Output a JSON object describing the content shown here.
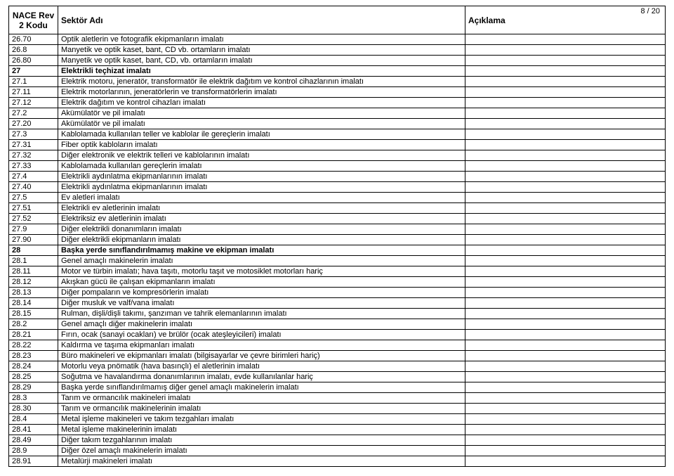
{
  "page": {
    "page_label": "8 / 20"
  },
  "header": {
    "col1": "NACE Rev 2 Kodu",
    "col2": "Sektör Adı",
    "col3": "Açıklama"
  },
  "rows": [
    {
      "code": "26.70",
      "name": "Optik aletlerin ve fotografik ekipmanların imalatı",
      "desc": "",
      "bold": false
    },
    {
      "code": "26.8",
      "name": "Manyetik ve optik kaset, bant, CD vb. ortamların imalatı",
      "desc": "",
      "bold": false
    },
    {
      "code": "26.80",
      "name": "Manyetik ve optik kaset, bant, CD, vb. ortamların imalatı",
      "desc": "",
      "bold": false
    },
    {
      "code": "27",
      "name": "Elektrikli teçhizat imalatı",
      "desc": "",
      "bold": true
    },
    {
      "code": "27.1",
      "name": "Elektrik motoru, jeneratör, transformatör ile elektrik dağıtım ve kontrol cihazlarının imalatı",
      "desc": "",
      "bold": false
    },
    {
      "code": "27.11",
      "name": "Elektrik motorlarının, jeneratörlerin ve transformatörlerin imalatı",
      "desc": "",
      "bold": false
    },
    {
      "code": "27.12",
      "name": "Elektrik dağıtım ve kontrol cihazları imalatı",
      "desc": "",
      "bold": false
    },
    {
      "code": "27.2",
      "name": "Akümülatör ve pil imalatı",
      "desc": "",
      "bold": false
    },
    {
      "code": "27.20",
      "name": "Akümülatör ve pil imalatı",
      "desc": "",
      "bold": false
    },
    {
      "code": "27.3",
      "name": "Kablolamada kullanılan teller ve kablolar ile gereçlerin imalatı",
      "desc": "",
      "bold": false
    },
    {
      "code": "27.31",
      "name": "Fiber optik kabloların imalatı",
      "desc": "",
      "bold": false
    },
    {
      "code": "27.32",
      "name": "Diğer elektronik ve elektrik telleri ve kablolarının imalatı",
      "desc": "",
      "bold": false
    },
    {
      "code": "27.33",
      "name": "Kablolamada kullanılan gereçlerin imalatı",
      "desc": "",
      "bold": false
    },
    {
      "code": "27.4",
      "name": "Elektrikli aydınlatma ekipmanlarının imalatı",
      "desc": "",
      "bold": false
    },
    {
      "code": "27.40",
      "name": "Elektrikli aydınlatma ekipmanlarının imalatı",
      "desc": "",
      "bold": false
    },
    {
      "code": "27.5",
      "name": "Ev aletleri imalatı",
      "desc": "",
      "bold": false
    },
    {
      "code": "27.51",
      "name": "Elektrikli ev aletlerinin imalatı",
      "desc": "",
      "bold": false
    },
    {
      "code": "27.52",
      "name": "Elektriksiz ev aletlerinin imalatı",
      "desc": "",
      "bold": false
    },
    {
      "code": "27.9",
      "name": "Diğer elektrikli donanımların imalatı",
      "desc": "",
      "bold": false
    },
    {
      "code": "27.90",
      "name": "Diğer elektrikli ekipmanların imalatı",
      "desc": "",
      "bold": false
    },
    {
      "code": "28",
      "name": "Başka yerde sınıflandırılmamış makine ve ekipman imalatı",
      "desc": "",
      "bold": true
    },
    {
      "code": "28.1",
      "name": "Genel amaçlı makinelerin imalatı",
      "desc": "",
      "bold": false
    },
    {
      "code": "28.11",
      "name": "Motor ve türbin imalatı; hava taşıtı, motorlu taşıt ve motosiklet motorları hariç",
      "desc": "",
      "bold": false
    },
    {
      "code": "28.12",
      "name": "Akışkan gücü ile çalışan ekipmanların imalatı",
      "desc": "",
      "bold": false
    },
    {
      "code": "28.13",
      "name": "Diğer pompaların ve kompresörlerin imalatı",
      "desc": "",
      "bold": false
    },
    {
      "code": "28.14",
      "name": "Diğer musluk ve valf/vana imalatı",
      "desc": "",
      "bold": false
    },
    {
      "code": "28.15",
      "name": "Rulman, dişli/dişli takımı, şanzıman ve tahrik elemanlarının imalatı",
      "desc": "",
      "bold": false
    },
    {
      "code": "28.2",
      "name": "Genel amaçlı diğer makinelerin imalatı",
      "desc": "",
      "bold": false
    },
    {
      "code": "28.21",
      "name": "Fırın, ocak (sanayi ocakları) ve brülör (ocak ateşleyicileri) imalatı",
      "desc": "",
      "bold": false
    },
    {
      "code": "28.22",
      "name": "Kaldırma ve taşıma ekipmanları imalatı",
      "desc": "",
      "bold": false
    },
    {
      "code": "28.23",
      "name": "Büro makineleri ve ekipmanları imalatı (bilgisayarlar ve çevre birimleri hariç)",
      "desc": "",
      "bold": false
    },
    {
      "code": "28.24",
      "name": "Motorlu veya pnömatik (hava basınçlı) el aletlerinin imalatı",
      "desc": "",
      "bold": false
    },
    {
      "code": "28.25",
      "name": "Soğutma ve havalandırma donanımlarının imalatı, evde kullanılanlar hariç",
      "desc": "",
      "bold": false
    },
    {
      "code": "28.29",
      "name": "Başka yerde sınıflandırılmamış diğer genel amaçlı makinelerin imalatı",
      "desc": "",
      "bold": false
    },
    {
      "code": "28.3",
      "name": "Tarım ve ormancılık makineleri imalatı",
      "desc": "",
      "bold": false
    },
    {
      "code": "28.30",
      "name": "Tarım ve ormancılık makinelerinin imalatı",
      "desc": "",
      "bold": false
    },
    {
      "code": "28.4",
      "name": "Metal işleme makineleri ve takım tezgahları imalatı",
      "desc": "",
      "bold": false
    },
    {
      "code": "28.41",
      "name": "Metal işleme makinelerinin imalatı",
      "desc": "",
      "bold": false
    },
    {
      "code": "28.49",
      "name": "Diğer takım tezgahlarının imalatı",
      "desc": "",
      "bold": false
    },
    {
      "code": "28.9",
      "name": "Diğer özel amaçlı makinelerin imalatı",
      "desc": "",
      "bold": false
    },
    {
      "code": "28.91",
      "name": "Metalürji makineleri imalatı",
      "desc": "",
      "bold": false
    }
  ]
}
